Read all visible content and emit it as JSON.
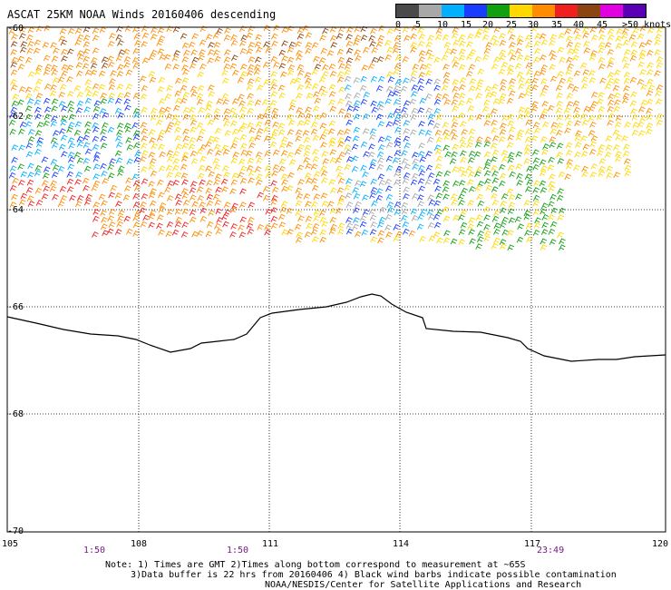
{
  "title": "ASCAT 25KM NOAA Winds 20160406 descending",
  "legend": {
    "labels": [
      "0",
      "5",
      "10",
      "15",
      "20",
      "25",
      "30",
      "35",
      "40",
      "45",
      ">50 knots"
    ],
    "colors": [
      "#4a4a4a",
      "#a8a8a8",
      "#00b0ff",
      "#1a3cff",
      "#10a010",
      "#ffd800",
      "#ff8c00",
      "#f02020",
      "#8b4513",
      "#e000e0",
      "#5a00b4"
    ]
  },
  "axes": {
    "lat_labels": [
      "-60",
      "-62",
      "-64",
      "-66",
      "-68",
      "-70"
    ],
    "lon_labels": [
      "105",
      "108",
      "111",
      "114",
      "117",
      "120"
    ]
  },
  "times": [
    "1:50",
    "1:50",
    "23:49"
  ],
  "notes": {
    "line1": "Note: 1) Times are GMT 2)Times along bottom correspond to measurement at ~65S",
    "line2": "3)Data buffer is 22 hrs from 20160406 4) Black wind barbs indicate possible contamination",
    "line3": "NOAA/NESDIS/Center for Satellite Applications and Research"
  },
  "map_style": {
    "coastline": "#000000",
    "grid": "#000000"
  }
}
